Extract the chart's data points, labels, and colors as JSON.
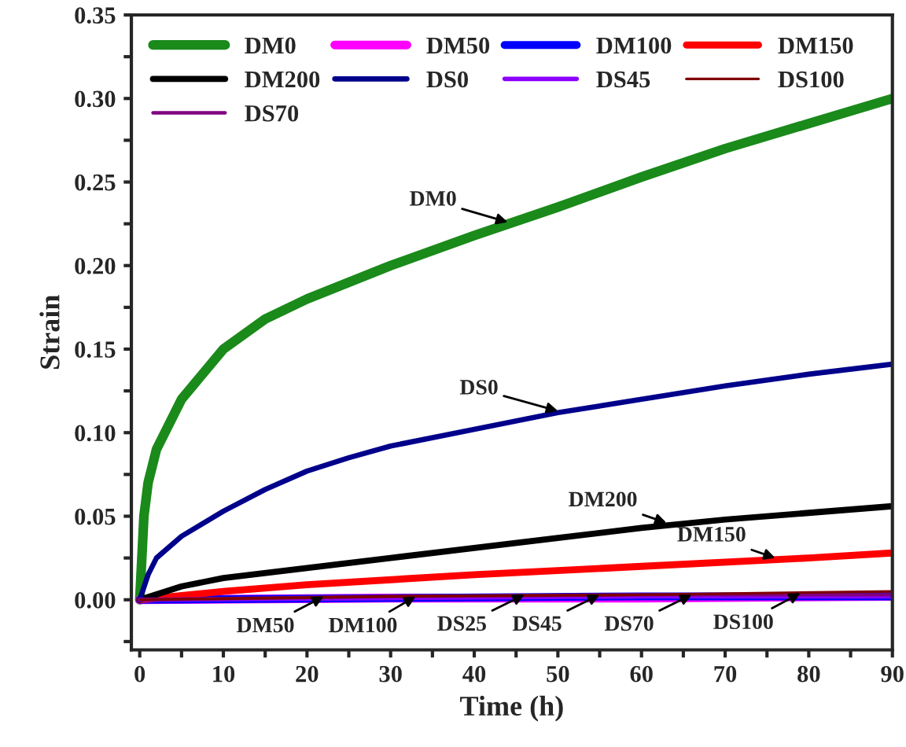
{
  "chart_data": {
    "type": "line",
    "xlabel": "Time (h)",
    "ylabel": "Strain",
    "xlim": [
      -1,
      90
    ],
    "ylim": [
      -0.03,
      0.35
    ],
    "xticks": [
      0,
      {
        "value": 5,
        "label": null
      },
      10,
      {
        "value": 15,
        "label": null
      },
      20,
      {
        "value": 25,
        "label": null
      },
      30,
      {
        "value": 35,
        "label": null
      },
      40,
      {
        "value": 45,
        "label": null
      },
      50,
      {
        "value": 55,
        "label": null
      },
      60,
      {
        "value": 65,
        "label": null
      },
      70,
      {
        "value": 75,
        "label": null
      },
      80,
      {
        "value": 85,
        "label": null
      },
      90
    ],
    "yticks": [
      {
        "value": -0.025,
        "label": null
      },
      {
        "value": 0,
        "label": "0.00"
      },
      {
        "value": 0.025,
        "label": null
      },
      {
        "value": 0.05,
        "label": "0.05"
      },
      {
        "value": 0.075,
        "label": null
      },
      {
        "value": 0.1,
        "label": "0.10"
      },
      {
        "value": 0.125,
        "label": null
      },
      {
        "value": 0.15,
        "label": "0.15"
      },
      {
        "value": 0.175,
        "label": null
      },
      {
        "value": 0.2,
        "label": "0.20"
      },
      {
        "value": 0.225,
        "label": null
      },
      {
        "value": 0.25,
        "label": "0.25"
      },
      {
        "value": 0.275,
        "label": null
      },
      {
        "value": 0.3,
        "label": "0.30"
      },
      {
        "value": 0.325,
        "label": null
      },
      {
        "value": 0.35,
        "label": "0.35"
      }
    ],
    "grid": false,
    "legend": "top left",
    "marker": "none",
    "line_style": "solid",
    "series": [
      {
        "name": "DM0",
        "color": "#1a8a1a",
        "x": [
          0,
          0.5,
          1,
          2,
          5,
          10,
          15,
          20,
          30,
          40,
          50,
          60,
          70,
          80,
          90
        ],
        "values": [
          0,
          0.05,
          0.07,
          0.09,
          0.12,
          0.15,
          0.168,
          0.18,
          0.2,
          0.218,
          0.235,
          0.253,
          0.27,
          0.285,
          0.3
        ]
      },
      {
        "name": "DM50",
        "color": "#ff00ff",
        "x": [
          0,
          30,
          60,
          90
        ],
        "values": [
          0,
          0.001,
          0.001,
          0.002
        ]
      },
      {
        "name": "DM100",
        "color": "#0000ff",
        "x": [
          0,
          30,
          60,
          90
        ],
        "values": [
          0,
          0.001,
          0.002,
          0.002
        ]
      },
      {
        "name": "DM150",
        "color": "#ff0000",
        "x": [
          0,
          10,
          20,
          40,
          60,
          80,
          90
        ],
        "values": [
          0,
          0.005,
          0.009,
          0.015,
          0.02,
          0.025,
          0.028
        ]
      },
      {
        "name": "DM200",
        "color": "#000000",
        "x": [
          0,
          5,
          10,
          20,
          30,
          40,
          50,
          60,
          70,
          80,
          90
        ],
        "values": [
          0,
          0.008,
          0.013,
          0.019,
          0.025,
          0.031,
          0.037,
          0.043,
          0.048,
          0.052,
          0.056
        ]
      },
      {
        "name": "DS0",
        "color": "#00008b",
        "x": [
          0,
          1,
          2,
          5,
          10,
          15,
          20,
          25,
          30,
          40,
          50,
          60,
          70,
          80,
          90
        ],
        "values": [
          0,
          0.015,
          0.025,
          0.038,
          0.053,
          0.066,
          0.077,
          0.085,
          0.092,
          0.102,
          0.112,
          0.12,
          0.128,
          0.135,
          0.141
        ]
      },
      {
        "name": "DS45",
        "color": "#8b00ff",
        "x": [
          0,
          30,
          60,
          90
        ],
        "values": [
          0,
          0.001,
          0.002,
          0.002
        ]
      },
      {
        "name": "DS70",
        "color": "#800080",
        "x": [
          0,
          30,
          60,
          90
        ],
        "values": [
          0,
          0.002,
          0.003,
          0.003
        ]
      },
      {
        "name": "DS100",
        "color": "#800000",
        "x": [
          0,
          30,
          60,
          90
        ],
        "values": [
          0,
          0.002,
          0.003,
          0.005
        ]
      }
    ],
    "annotations": [
      {
        "text": "DM0",
        "x": 44,
        "y": 0.226
      },
      {
        "text": "DS0",
        "x": 50,
        "y": 0.113
      },
      {
        "text": "DM200",
        "x": 63,
        "y": 0.046
      },
      {
        "text": "DM150",
        "x": 76,
        "y": 0.025
      },
      {
        "text": "DM50",
        "x": 22,
        "y": 0.002
      },
      {
        "text": "DM100",
        "x": 33,
        "y": 0.002
      },
      {
        "text": "DS25",
        "x": 46,
        "y": 0.003
      },
      {
        "text": "DS45",
        "x": 55,
        "y": 0.003
      },
      {
        "text": "DS70",
        "x": 66,
        "y": 0.003
      },
      {
        "text": "DS100",
        "x": 79,
        "y": 0.004
      }
    ]
  }
}
